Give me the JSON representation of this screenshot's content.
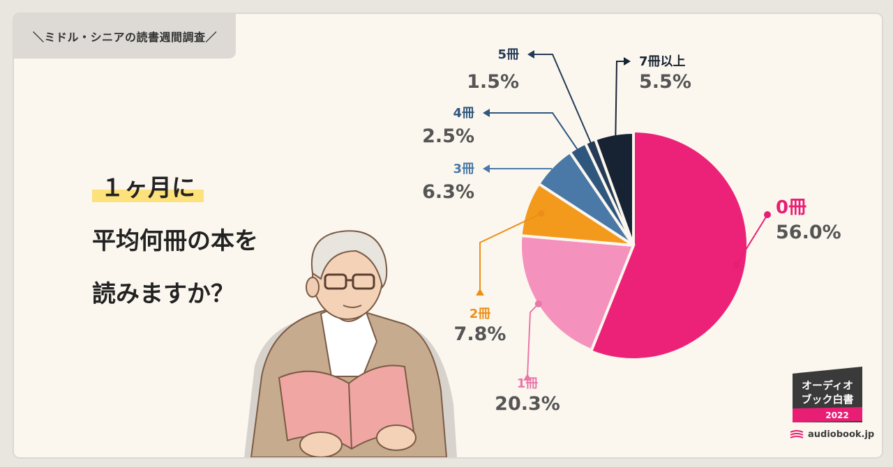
{
  "header_tag": "＼ミドル・シニアの読書週間調査／",
  "question": {
    "line1": "１ヶ月に",
    "line2": "平均何冊の本を",
    "line3": "読みますか？"
  },
  "chart_data": {
    "type": "pie",
    "slices": [
      {
        "label": "0冊",
        "value": 56.0,
        "value_label": "56.0%",
        "color": "#ec2278",
        "text_color": "#e81e74"
      },
      {
        "label": "1冊",
        "value": 20.3,
        "value_label": "20.3%",
        "color": "#f591bd",
        "text_color": "#e878a9"
      },
      {
        "label": "2冊",
        "value": 7.8,
        "value_label": "7.8%",
        "color": "#f39a1d",
        "text_color": "#ec8f18"
      },
      {
        "label": "3冊",
        "value": 6.3,
        "value_label": "6.3%",
        "color": "#4a79a7",
        "text_color": "#4a79a7"
      },
      {
        "label": "4冊",
        "value": 2.5,
        "value_label": "2.5%",
        "color": "#2f577e",
        "text_color": "#2f577e"
      },
      {
        "label": "5冊",
        "value": 1.5,
        "value_label": "1.5%",
        "color": "#243a55",
        "text_color": "#243a55"
      },
      {
        "label": "7冊以上",
        "value": 5.5,
        "value_label": "5.5%",
        "color": "#172332",
        "text_color": "#172332"
      }
    ],
    "value_text_color": "#555555"
  },
  "badge": {
    "line1": "オーディオ",
    "line2": "ブック白書",
    "year": "2022"
  },
  "brand": "audiobook.jp",
  "illustration": "elderly man with glasses reading a pink book"
}
